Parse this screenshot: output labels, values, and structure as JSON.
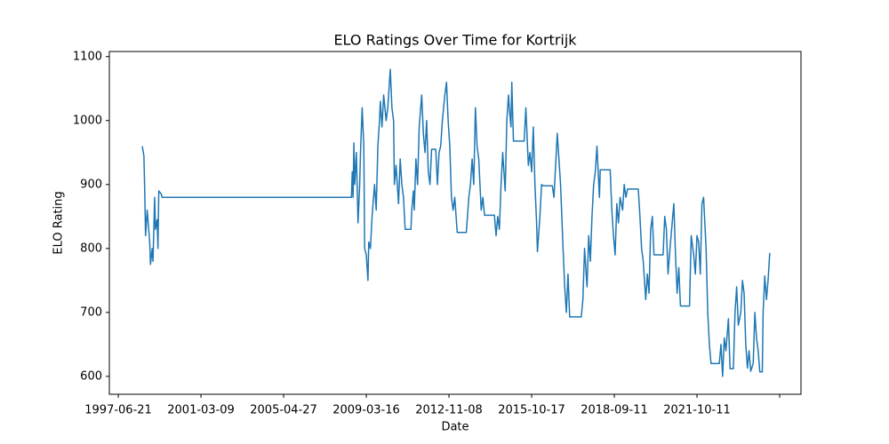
{
  "chart_data": {
    "type": "line",
    "title": "ELO Ratings Over Time for Kortrijk",
    "xlabel": "Date",
    "ylabel": "ELO Rating",
    "color": "#1f77b4",
    "grid": false,
    "xlim": [
      -108,
      8258
    ],
    "ylim": [
      572,
      1108
    ],
    "xticks": [
      {
        "value": 0,
        "label": "1997-06-21"
      },
      {
        "value": 1000,
        "label": "2001-03-09"
      },
      {
        "value": 2000,
        "label": "2005-04-27"
      },
      {
        "value": 3000,
        "label": "2009-03-16"
      },
      {
        "value": 4000,
        "label": "2012-11-08"
      },
      {
        "value": 5000,
        "label": "2015-10-17"
      },
      {
        "value": 6000,
        "label": "2018-09-11"
      },
      {
        "value": 7000,
        "label": "2021-10-11"
      },
      {
        "value": 8000,
        "label": null
      }
    ],
    "yticks": [
      600,
      700,
      800,
      900,
      1000,
      1100
    ],
    "x": [
      290,
      310,
      320,
      330,
      350,
      380,
      390,
      410,
      420,
      440,
      450,
      470,
      480,
      490,
      520,
      530,
      2820,
      2830,
      2840,
      2850,
      2860,
      2880,
      2900,
      2920,
      2930,
      2950,
      2970,
      2980,
      3000,
      3020,
      3030,
      3050,
      3070,
      3100,
      3120,
      3140,
      3160,
      3170,
      3190,
      3210,
      3240,
      3260,
      3280,
      3290,
      3310,
      3330,
      3340,
      3360,
      3390,
      3410,
      3430,
      3450,
      3470,
      3500,
      3540,
      3550,
      3570,
      3580,
      3600,
      3620,
      3640,
      3670,
      3690,
      3710,
      3730,
      3750,
      3770,
      3790,
      3840,
      3860,
      3880,
      3900,
      3920,
      3950,
      3970,
      3990,
      4010,
      4030,
      4050,
      4070,
      4100,
      4210,
      4240,
      4260,
      4280,
      4300,
      4320,
      4340,
      4360,
      4390,
      4410,
      4430,
      4550,
      4570,
      4590,
      4610,
      4630,
      4650,
      4680,
      4700,
      4720,
      4730,
      4750,
      4760,
      4780,
      4910,
      4930,
      4960,
      4980,
      5000,
      5020,
      5040,
      5060,
      5070,
      5100,
      5120,
      5140,
      5250,
      5270,
      5290,
      5310,
      5330,
      5350,
      5380,
      5400,
      5420,
      5440,
      5460,
      5600,
      5620,
      5640,
      5670,
      5690,
      5710,
      5730,
      5750,
      5770,
      5790,
      5820,
      5830,
      5950,
      5970,
      5990,
      6010,
      6030,
      6050,
      6070,
      6100,
      6120,
      6140,
      6160,
      6290,
      6310,
      6330,
      6350,
      6380,
      6400,
      6420,
      6440,
      6460,
      6480,
      6590,
      6610,
      6630,
      6650,
      6680,
      6700,
      6720,
      6740,
      6760,
      6780,
      6800,
      6910,
      6930,
      6960,
      6980,
      7000,
      7020,
      7040,
      7060,
      7080,
      7110,
      7130,
      7150,
      7170,
      7270,
      7290,
      7310,
      7330,
      7350,
      7380,
      7400,
      7440,
      7460,
      7480,
      7500,
      7530,
      7550,
      7570,
      7590,
      7610,
      7630,
      7650,
      7680,
      7700,
      7720,
      7740,
      7760,
      7790,
      7800,
      7820,
      7840,
      7860,
      7880
    ],
    "values": [
      960,
      945,
      890,
      820,
      860,
      810,
      775,
      800,
      780,
      880,
      830,
      845,
      800,
      890,
      885,
      880,
      880,
      920,
      880,
      965,
      900,
      950,
      840,
      900,
      950,
      1020,
      960,
      800,
      790,
      750,
      810,
      800,
      850,
      900,
      860,
      960,
      1000,
      1030,
      990,
      1040,
      1000,
      1020,
      1060,
      1080,
      1020,
      1000,
      900,
      930,
      870,
      940,
      900,
      880,
      830,
      830,
      830,
      860,
      890,
      860,
      940,
      900,
      990,
      1040,
      980,
      950,
      1000,
      920,
      900,
      955,
      955,
      900,
      950,
      960,
      1000,
      1040,
      1060,
      1000,
      960,
      880,
      860,
      880,
      825,
      825,
      880,
      900,
      940,
      900,
      1020,
      960,
      940,
      860,
      880,
      852,
      852,
      820,
      850,
      830,
      900,
      950,
      890,
      1000,
      1040,
      1020,
      990,
      1060,
      968,
      968,
      1020,
      930,
      950,
      920,
      990,
      900,
      840,
      795,
      850,
      900,
      898,
      898,
      880,
      930,
      980,
      940,
      900,
      800,
      740,
      700,
      760,
      693,
      693,
      720,
      800,
      740,
      820,
      780,
      850,
      900,
      920,
      960,
      880,
      923,
      923,
      860,
      820,
      790,
      870,
      840,
      880,
      860,
      900,
      880,
      893,
      893,
      850,
      800,
      780,
      720,
      760,
      730,
      830,
      850,
      790,
      790,
      850,
      830,
      760,
      810,
      840,
      870,
      790,
      730,
      770,
      710,
      710,
      820,
      790,
      760,
      820,
      810,
      760,
      870,
      880,
      800,
      700,
      650,
      620,
      620,
      650,
      600,
      660,
      640,
      690,
      612,
      612,
      700,
      740,
      680,
      700,
      750,
      730,
      650,
      613,
      640,
      608,
      620,
      700,
      660,
      640,
      607,
      607,
      700,
      757,
      720,
      750,
      793
    ]
  }
}
